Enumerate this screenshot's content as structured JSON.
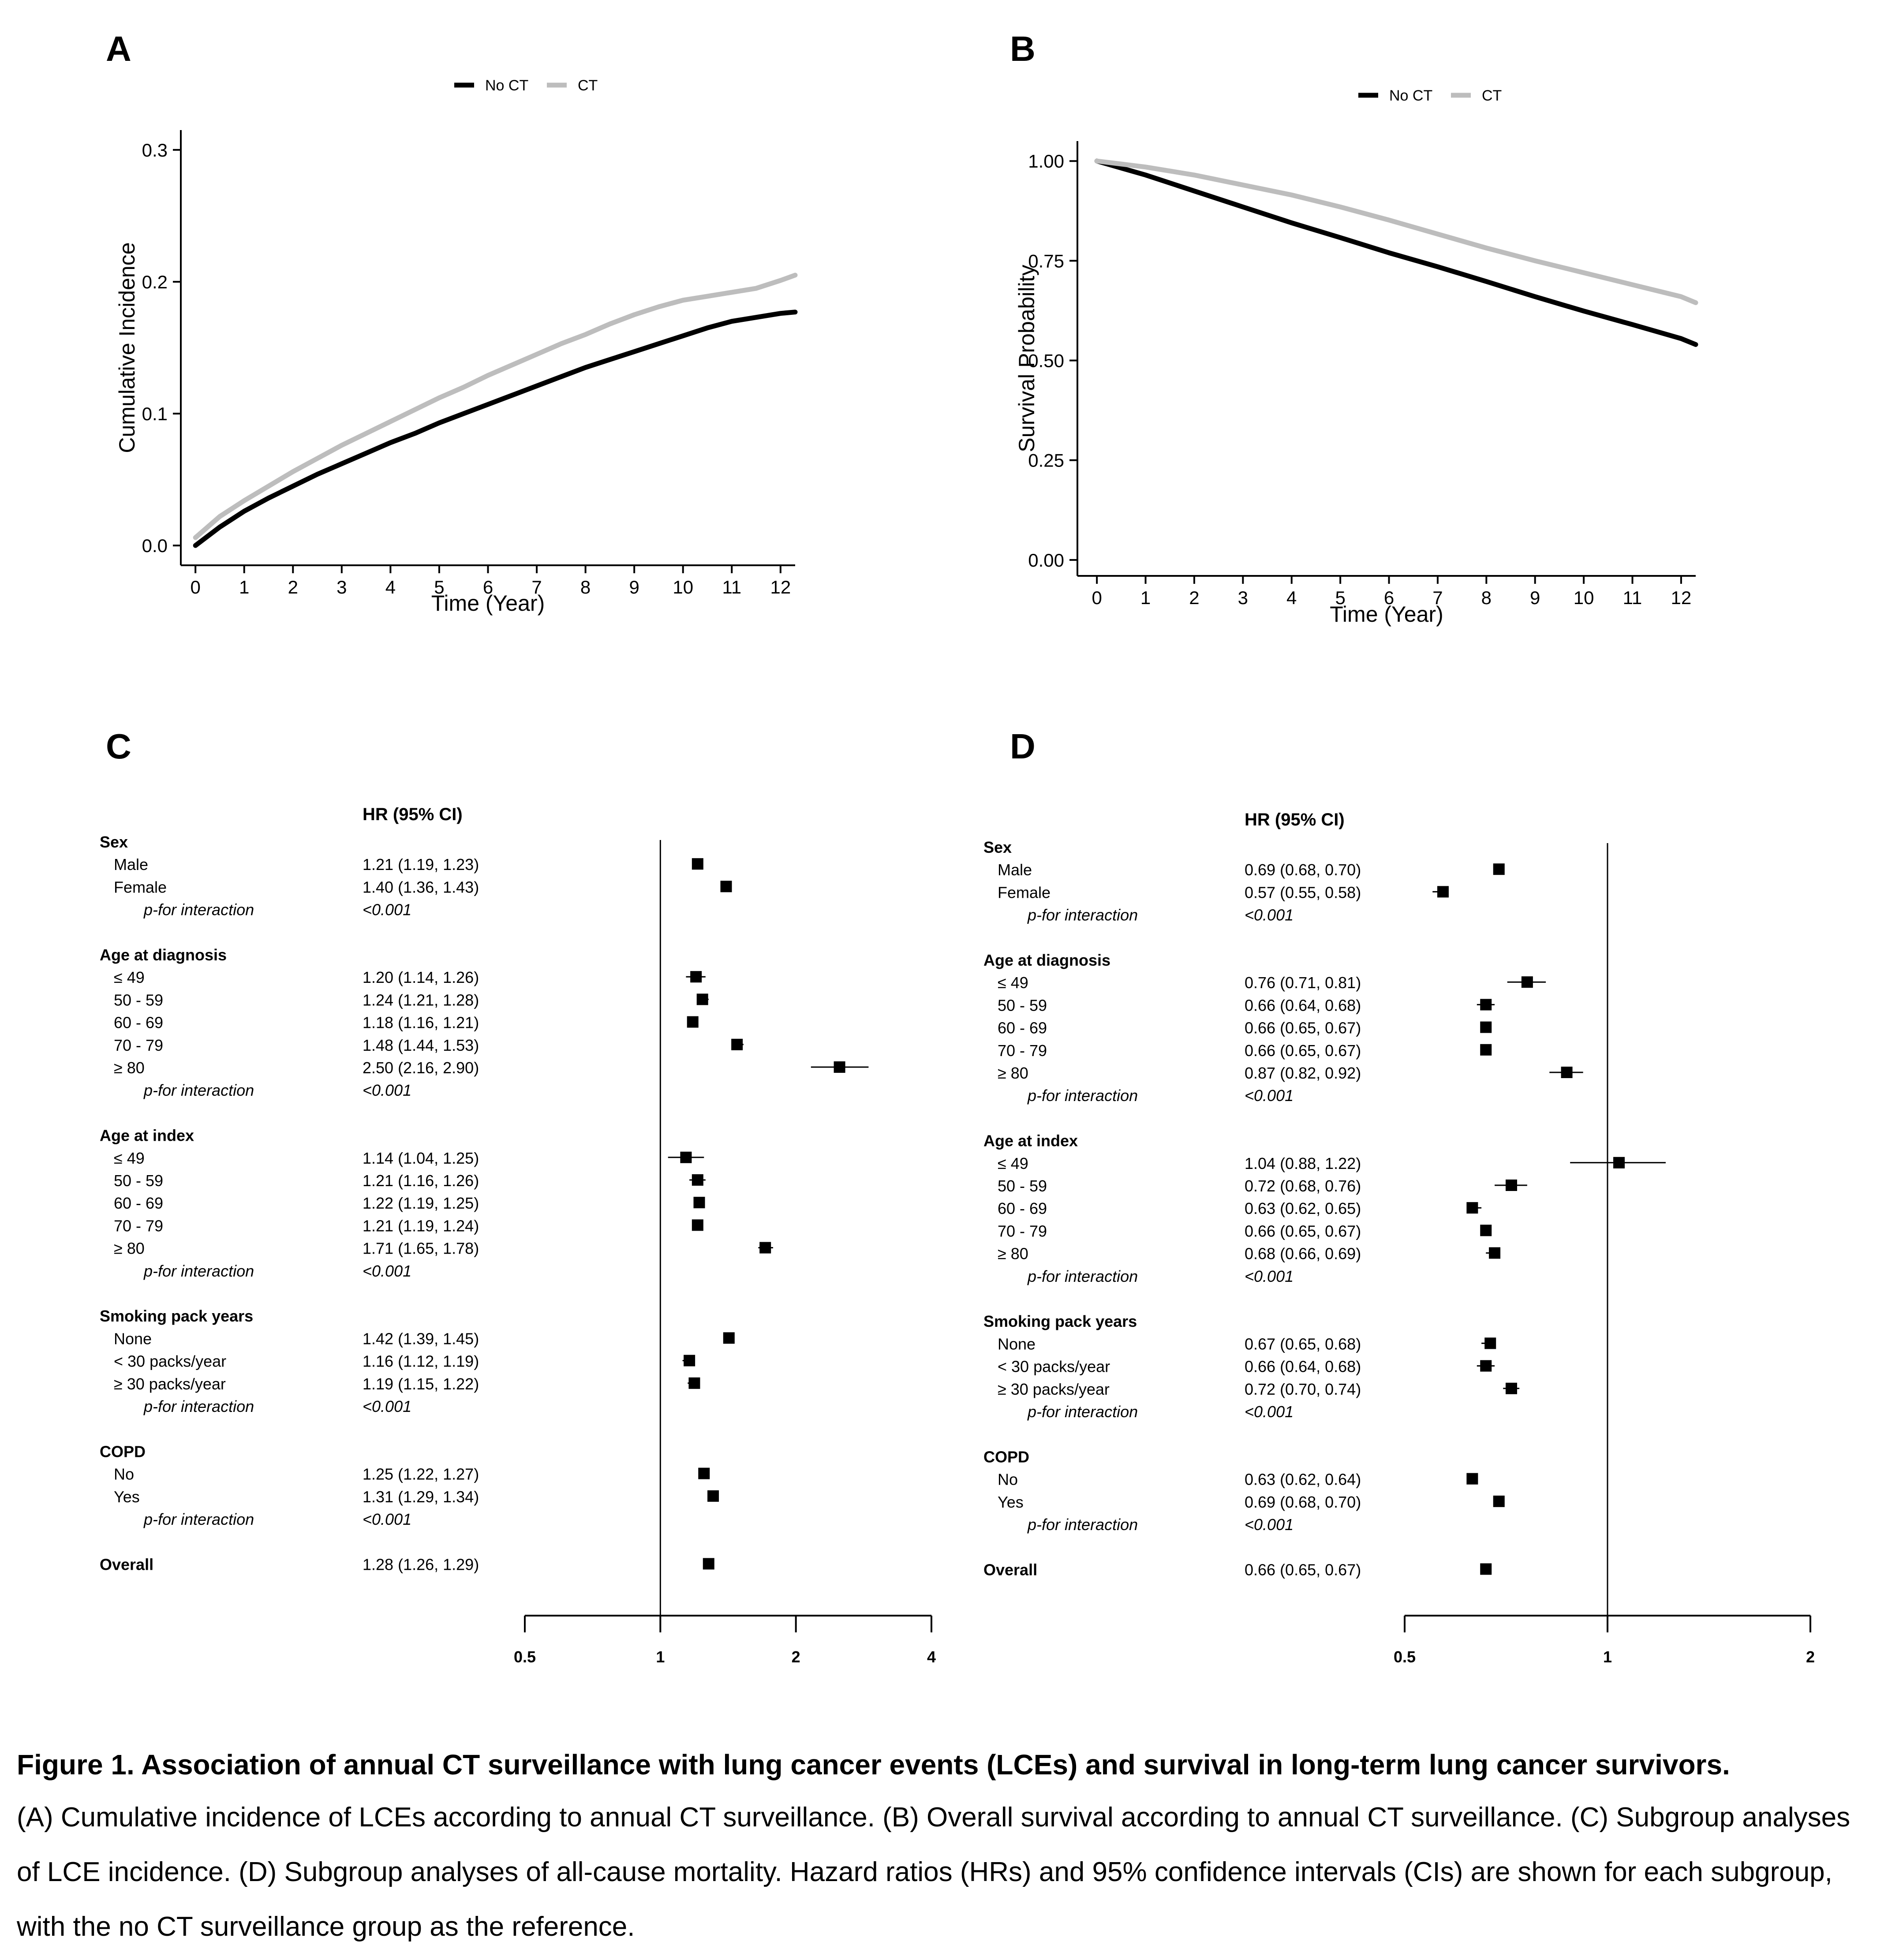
{
  "panel_labels": [
    "A",
    "B",
    "C",
    "D"
  ],
  "caption": {
    "title": "Figure 1. Association of annual CT surveillance with lung cancer events (LCEs) and survival in long-term lung cancer survivors.",
    "body": "(A) Cumulative incidence of LCEs according to annual CT surveillance. (B) Overall survival according to annual CT surveillance. (C) Subgroup analyses of LCE incidence. (D) Subgroup analyses of all-cause mortality. Hazard ratios (HRs) and 95% confidence intervals (CIs) are shown for each subgroup, with the no CT surveillance group as the reference."
  },
  "colors": {
    "no_ct": "#000000",
    "ct": "#bdbdbd",
    "axis": "#000000"
  },
  "chart_data": [
    {
      "panel": "A",
      "type": "line",
      "xlabel": "Time (Year)",
      "ylabel": "Cumulative Incidence",
      "xlim": [
        -0.3,
        12.3
      ],
      "ylim": [
        -0.015,
        0.315
      ],
      "xticks": [
        0,
        1,
        2,
        3,
        4,
        5,
        6,
        7,
        8,
        9,
        10,
        11,
        12
      ],
      "yticks": [
        0.0,
        0.1,
        0.2,
        0.3
      ],
      "ytick_labels": [
        "0.0",
        "0.1",
        "0.2",
        "0.3"
      ],
      "legend": "top-center",
      "series": [
        {
          "name": "No CT",
          "color": "#000000",
          "x": [
            0,
            0.5,
            1,
            1.5,
            2,
            2.5,
            3,
            3.5,
            4,
            4.5,
            5,
            5.5,
            6,
            6.5,
            7,
            7.5,
            8,
            8.5,
            9,
            9.5,
            10,
            10.5,
            11,
            11.5,
            12,
            12.3
          ],
          "y": [
            0,
            0.014,
            0.026,
            0.036,
            0.045,
            0.054,
            0.062,
            0.07,
            0.078,
            0.085,
            0.093,
            0.1,
            0.107,
            0.114,
            0.121,
            0.128,
            0.135,
            0.141,
            0.147,
            0.153,
            0.159,
            0.165,
            0.17,
            0.173,
            0.176,
            0.177
          ]
        },
        {
          "name": "CT",
          "color": "#bdbdbd",
          "x": [
            0,
            0.5,
            1,
            1.5,
            2,
            2.5,
            3,
            3.5,
            4,
            4.5,
            5,
            5.5,
            6,
            6.5,
            7,
            7.5,
            8,
            8.5,
            9,
            9.5,
            10,
            10.5,
            11,
            11.5,
            12,
            12.3
          ],
          "y": [
            0.006,
            0.022,
            0.034,
            0.045,
            0.056,
            0.066,
            0.076,
            0.085,
            0.094,
            0.103,
            0.112,
            0.12,
            0.129,
            0.137,
            0.145,
            0.153,
            0.16,
            0.168,
            0.175,
            0.181,
            0.186,
            0.189,
            0.192,
            0.195,
            0.201,
            0.205
          ]
        }
      ]
    },
    {
      "panel": "B",
      "type": "line",
      "xlabel": "Time (Year)",
      "ylabel": "Survival Probability",
      "xlim": [
        -0.4,
        12.3
      ],
      "ylim": [
        -0.04,
        1.05
      ],
      "xticks": [
        0,
        1,
        2,
        3,
        4,
        5,
        6,
        7,
        8,
        9,
        10,
        11,
        12
      ],
      "yticks": [
        0.0,
        0.25,
        0.5,
        0.75,
        1.0
      ],
      "ytick_labels": [
        "0.00",
        "0.25",
        "0.50",
        "0.75",
        "1.00"
      ],
      "legend": "top-center",
      "series": [
        {
          "name": "No CT",
          "color": "#000000",
          "x": [
            0,
            1,
            2,
            3,
            4,
            5,
            6,
            7,
            8,
            9,
            10,
            11,
            12,
            12.3
          ],
          "y": [
            1.0,
            0.965,
            0.925,
            0.885,
            0.845,
            0.808,
            0.77,
            0.735,
            0.698,
            0.66,
            0.624,
            0.59,
            0.555,
            0.54
          ]
        },
        {
          "name": "CT",
          "color": "#bdbdbd",
          "x": [
            0,
            1,
            2,
            3,
            4,
            5,
            6,
            7,
            8,
            9,
            10,
            11,
            12,
            12.3
          ],
          "y": [
            1.0,
            0.985,
            0.965,
            0.94,
            0.915,
            0.885,
            0.852,
            0.817,
            0.782,
            0.75,
            0.72,
            0.69,
            0.66,
            0.645
          ]
        }
      ]
    },
    {
      "panel": "C",
      "type": "forest",
      "header": "HR (95% CI)",
      "scale": "log",
      "xlim": [
        0.5,
        4
      ],
      "reference": 1,
      "xticks": [
        0.5,
        1,
        2,
        4
      ],
      "xtick_labels": [
        "0.5",
        "1",
        "2",
        "4"
      ],
      "rows": [
        {
          "kind": "group",
          "label": "Sex"
        },
        {
          "kind": "sub",
          "label": "Male",
          "text": "1.21 (1.19, 1.23)",
          "hr": 1.21,
          "lo": 1.19,
          "hi": 1.23
        },
        {
          "kind": "sub",
          "label": "Female",
          "text": "1.40 (1.36, 1.43)",
          "hr": 1.4,
          "lo": 1.36,
          "hi": 1.43
        },
        {
          "kind": "p",
          "label": "p-for interaction",
          "text": "<0.001"
        },
        {
          "kind": "gap"
        },
        {
          "kind": "group",
          "label": "Age at diagnosis"
        },
        {
          "kind": "sub",
          "label": "≤ 49",
          "text": "1.20 (1.14, 1.26)",
          "hr": 1.2,
          "lo": 1.14,
          "hi": 1.26
        },
        {
          "kind": "sub",
          "label": "50 - 59",
          "text": "1.24 (1.21, 1.28)",
          "hr": 1.24,
          "lo": 1.21,
          "hi": 1.28
        },
        {
          "kind": "sub",
          "label": "60 - 69",
          "text": "1.18 (1.16, 1.21)",
          "hr": 1.18,
          "lo": 1.16,
          "hi": 1.21
        },
        {
          "kind": "sub",
          "label": "70 - 79",
          "text": "1.48 (1.44, 1.53)",
          "hr": 1.48,
          "lo": 1.44,
          "hi": 1.53
        },
        {
          "kind": "sub",
          "label": "≥ 80",
          "text": "2.50 (2.16, 2.90)",
          "hr": 2.5,
          "lo": 2.16,
          "hi": 2.9
        },
        {
          "kind": "p",
          "label": "p-for interaction",
          "text": "<0.001"
        },
        {
          "kind": "gap"
        },
        {
          "kind": "group",
          "label": "Age at index"
        },
        {
          "kind": "sub",
          "label": "≤ 49",
          "text": "1.14 (1.04, 1.25)",
          "hr": 1.14,
          "lo": 1.04,
          "hi": 1.25
        },
        {
          "kind": "sub",
          "label": "50 - 59",
          "text": "1.21 (1.16, 1.26)",
          "hr": 1.21,
          "lo": 1.16,
          "hi": 1.26
        },
        {
          "kind": "sub",
          "label": "60 - 69",
          "text": "1.22 (1.19, 1.25)",
          "hr": 1.22,
          "lo": 1.19,
          "hi": 1.25
        },
        {
          "kind": "sub",
          "label": "70 - 79",
          "text": "1.21 (1.19, 1.24)",
          "hr": 1.21,
          "lo": 1.19,
          "hi": 1.24
        },
        {
          "kind": "sub",
          "label": "≥ 80",
          "text": "1.71 (1.65, 1.78)",
          "hr": 1.71,
          "lo": 1.65,
          "hi": 1.78
        },
        {
          "kind": "p",
          "label": "p-for interaction",
          "text": "<0.001"
        },
        {
          "kind": "gap"
        },
        {
          "kind": "group",
          "label": "Smoking pack years"
        },
        {
          "kind": "sub",
          "label": "None",
          "text": "1.42 (1.39, 1.45)",
          "hr": 1.42,
          "lo": 1.39,
          "hi": 1.45
        },
        {
          "kind": "sub",
          "label": "< 30 packs/year",
          "text": "1.16 (1.12, 1.19)",
          "hr": 1.16,
          "lo": 1.12,
          "hi": 1.19
        },
        {
          "kind": "sub",
          "label": "≥ 30 packs/year",
          "text": "1.19 (1.15, 1.22)",
          "hr": 1.19,
          "lo": 1.15,
          "hi": 1.22
        },
        {
          "kind": "p",
          "label": "p-for interaction",
          "text": "<0.001"
        },
        {
          "kind": "gap"
        },
        {
          "kind": "group",
          "label": "COPD"
        },
        {
          "kind": "sub",
          "label": "No",
          "text": "1.25 (1.22, 1.27)",
          "hr": 1.25,
          "lo": 1.22,
          "hi": 1.27
        },
        {
          "kind": "sub",
          "label": "Yes",
          "text": "1.31 (1.29, 1.34)",
          "hr": 1.31,
          "lo": 1.29,
          "hi": 1.34
        },
        {
          "kind": "p",
          "label": "p-for interaction",
          "text": "<0.001"
        },
        {
          "kind": "gap"
        },
        {
          "kind": "overall",
          "label": "Overall",
          "text": "1.28 (1.26, 1.29)",
          "hr": 1.28,
          "lo": 1.26,
          "hi": 1.29
        }
      ]
    },
    {
      "panel": "D",
      "type": "forest",
      "header": "HR (95% CI)",
      "scale": "log",
      "xlim": [
        0.5,
        2
      ],
      "reference": 1,
      "xticks": [
        0.5,
        1,
        2
      ],
      "xtick_labels": [
        "0.5",
        "1",
        "2"
      ],
      "rows": [
        {
          "kind": "group",
          "label": "Sex"
        },
        {
          "kind": "sub",
          "label": "Male",
          "text": "0.69 (0.68, 0.70)",
          "hr": 0.69,
          "lo": 0.68,
          "hi": 0.7
        },
        {
          "kind": "sub",
          "label": "Female",
          "text": "0.57 (0.55, 0.58)",
          "hr": 0.57,
          "lo": 0.55,
          "hi": 0.58
        },
        {
          "kind": "p",
          "label": "p-for interaction",
          "text": "<0.001"
        },
        {
          "kind": "gap"
        },
        {
          "kind": "group",
          "label": "Age at diagnosis"
        },
        {
          "kind": "sub",
          "label": "≤ 49",
          "text": "0.76 (0.71, 0.81)",
          "hr": 0.76,
          "lo": 0.71,
          "hi": 0.81
        },
        {
          "kind": "sub",
          "label": "50 - 59",
          "text": "0.66 (0.64, 0.68)",
          "hr": 0.66,
          "lo": 0.64,
          "hi": 0.68
        },
        {
          "kind": "sub",
          "label": "60 - 69",
          "text": "0.66 (0.65, 0.67)",
          "hr": 0.66,
          "lo": 0.65,
          "hi": 0.67
        },
        {
          "kind": "sub",
          "label": "70 - 79",
          "text": "0.66 (0.65, 0.67)",
          "hr": 0.66,
          "lo": 0.65,
          "hi": 0.67
        },
        {
          "kind": "sub",
          "label": "≥ 80",
          "text": "0.87 (0.82, 0.92)",
          "hr": 0.87,
          "lo": 0.82,
          "hi": 0.92
        },
        {
          "kind": "p",
          "label": "p-for interaction",
          "text": "<0.001"
        },
        {
          "kind": "gap"
        },
        {
          "kind": "group",
          "label": "Age at index"
        },
        {
          "kind": "sub",
          "label": "≤ 49",
          "text": "1.04 (0.88, 1.22)",
          "hr": 1.04,
          "lo": 0.88,
          "hi": 1.22
        },
        {
          "kind": "sub",
          "label": "50 - 59",
          "text": "0.72 (0.68, 0.76)",
          "hr": 0.72,
          "lo": 0.68,
          "hi": 0.76
        },
        {
          "kind": "sub",
          "label": "60 - 69",
          "text": "0.63 (0.62, 0.65)",
          "hr": 0.63,
          "lo": 0.62,
          "hi": 0.65
        },
        {
          "kind": "sub",
          "label": "70 - 79",
          "text": "0.66 (0.65, 0.67)",
          "hr": 0.66,
          "lo": 0.65,
          "hi": 0.67
        },
        {
          "kind": "sub",
          "label": "≥ 80",
          "text": "0.68 (0.66, 0.69)",
          "hr": 0.68,
          "lo": 0.66,
          "hi": 0.69
        },
        {
          "kind": "p",
          "label": "p-for interaction",
          "text": "<0.001"
        },
        {
          "kind": "gap"
        },
        {
          "kind": "group",
          "label": "Smoking pack years"
        },
        {
          "kind": "sub",
          "label": "None",
          "text": "0.67 (0.65, 0.68)",
          "hr": 0.67,
          "lo": 0.65,
          "hi": 0.68
        },
        {
          "kind": "sub",
          "label": "< 30 packs/year",
          "text": "0.66 (0.64, 0.68)",
          "hr": 0.66,
          "lo": 0.64,
          "hi": 0.68
        },
        {
          "kind": "sub",
          "label": "≥ 30 packs/year",
          "text": "0.72 (0.70, 0.74)",
          "hr": 0.72,
          "lo": 0.7,
          "hi": 0.74
        },
        {
          "kind": "p",
          "label": "p-for interaction",
          "text": "<0.001"
        },
        {
          "kind": "gap"
        },
        {
          "kind": "group",
          "label": "COPD"
        },
        {
          "kind": "sub",
          "label": "No",
          "text": "0.63 (0.62, 0.64)",
          "hr": 0.63,
          "lo": 0.62,
          "hi": 0.64
        },
        {
          "kind": "sub",
          "label": "Yes",
          "text": "0.69 (0.68, 0.70)",
          "hr": 0.69,
          "lo": 0.68,
          "hi": 0.7
        },
        {
          "kind": "p",
          "label": "p-for interaction",
          "text": "<0.001"
        },
        {
          "kind": "gap"
        },
        {
          "kind": "overall",
          "label": "Overall",
          "text": "0.66 (0.65, 0.67)",
          "hr": 0.66,
          "lo": 0.65,
          "hi": 0.67
        }
      ]
    }
  ]
}
